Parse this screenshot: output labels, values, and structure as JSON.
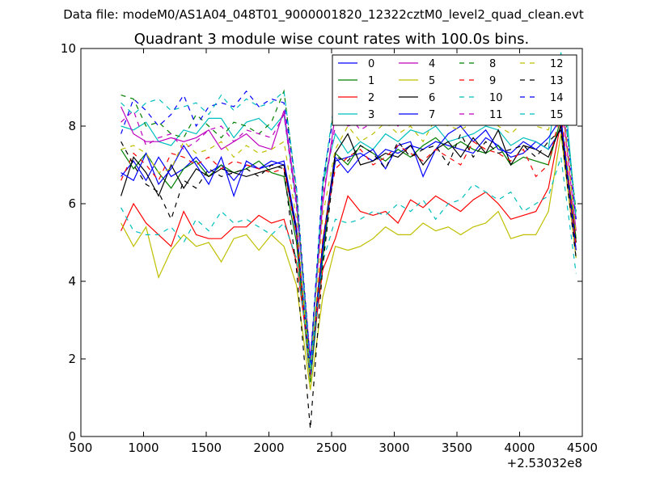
{
  "suptitle": "Data file: modeM0/AS1A04_048T01_9000001820_12322cztM0_level2_quad_clean.evt",
  "chart_data": {
    "type": "line",
    "title": "Quadrant 3 module wise count rates with 100.0s bins.",
    "xlabel": "",
    "ylabel": "",
    "x_offset_label": "+2.53032e8",
    "xlim": [
      500,
      4500
    ],
    "ylim": [
      0,
      10
    ],
    "xticks": [
      "500",
      "1000",
      "1500",
      "2000",
      "2500",
      "3000",
      "3500",
      "4000",
      "4500"
    ],
    "yticks": [
      "0",
      "2",
      "4",
      "6",
      "8",
      "10"
    ],
    "grid": false,
    "legend_position": "top-right",
    "x": [
      820,
      920,
      1020,
      1120,
      1220,
      1320,
      1420,
      1520,
      1620,
      1720,
      1820,
      1920,
      2020,
      2120,
      2220,
      2330,
      2430,
      2530,
      2630,
      2730,
      2830,
      2930,
      3030,
      3130,
      3230,
      3330,
      3430,
      3530,
      3630,
      3730,
      3830,
      3930,
      4030,
      4130,
      4230,
      4330,
      4450
    ],
    "series": [
      {
        "name": "0",
        "color": "#0000ff",
        "dash": "solid",
        "values": [
          6.7,
          7.1,
          6.6,
          7.2,
          6.7,
          6.9,
          7.2,
          6.8,
          7.0,
          6.6,
          7.0,
          6.9,
          7.1,
          7.0,
          5.2,
          1.6,
          4.8,
          7.1,
          7.2,
          7.3,
          7.1,
          7.4,
          7.3,
          7.5,
          7.4,
          7.6,
          7.5,
          7.4,
          7.3,
          7.7,
          7.5,
          7.2,
          7.3,
          7.6,
          7.4,
          7.9,
          5.0
        ]
      },
      {
        "name": "1",
        "color": "#008000",
        "dash": "solid",
        "values": [
          7.4,
          6.9,
          7.3,
          6.8,
          6.4,
          6.9,
          7.1,
          6.7,
          7.0,
          6.8,
          6.9,
          7.1,
          6.8,
          6.7,
          5.0,
          1.4,
          4.6,
          7.3,
          7.0,
          7.5,
          7.3,
          7.1,
          7.4,
          7.2,
          7.5,
          7.7,
          7.4,
          7.6,
          7.4,
          7.3,
          7.5,
          7.0,
          7.2,
          7.1,
          7.0,
          8.2,
          5.1
        ]
      },
      {
        "name": "2",
        "color": "#ff0000",
        "dash": "solid",
        "values": [
          5.3,
          6.0,
          5.5,
          5.2,
          4.9,
          5.8,
          5.2,
          5.1,
          5.1,
          5.4,
          5.4,
          5.7,
          5.5,
          5.6,
          4.5,
          1.8,
          4.3,
          5.1,
          6.2,
          5.8,
          5.7,
          5.8,
          5.5,
          6.1,
          5.9,
          6.2,
          6.0,
          5.8,
          6.1,
          6.3,
          6.0,
          5.6,
          5.7,
          5.8,
          6.4,
          8.1,
          4.8
        ]
      },
      {
        "name": "3",
        "color": "#00bfbf",
        "dash": "solid",
        "values": [
          8.0,
          7.9,
          8.1,
          7.6,
          7.5,
          7.9,
          7.8,
          8.2,
          8.2,
          7.7,
          8.1,
          8.2,
          7.9,
          8.3,
          6.0,
          1.8,
          6.5,
          7.8,
          7.3,
          7.6,
          7.4,
          7.8,
          7.6,
          7.9,
          7.8,
          8.0,
          7.6,
          7.7,
          7.8,
          8.0,
          7.9,
          7.5,
          7.7,
          7.6,
          7.4,
          9.9,
          5.6
        ]
      },
      {
        "name": "4",
        "color": "#bf00bf",
        "dash": "solid",
        "values": [
          8.5,
          7.8,
          7.6,
          7.6,
          7.7,
          7.6,
          7.7,
          7.9,
          7.4,
          7.6,
          7.8,
          7.5,
          7.4,
          8.4,
          6.1,
          2.0,
          6.0,
          8.3,
          8.0,
          8.1,
          8.2,
          8.3,
          8.0,
          8.4,
          8.2,
          8.5,
          8.3,
          8.1,
          8.4,
          8.6,
          8.7,
          8.2,
          8.5,
          8.4,
          8.3,
          8.8,
          5.3
        ]
      },
      {
        "name": "5",
        "color": "#bfbf00",
        "dash": "solid",
        "values": [
          5.5,
          4.9,
          5.4,
          4.1,
          4.8,
          5.2,
          4.9,
          5.0,
          4.5,
          5.1,
          5.2,
          4.8,
          5.2,
          4.9,
          3.9,
          1.2,
          3.6,
          4.9,
          4.8,
          4.9,
          5.1,
          5.4,
          5.2,
          5.2,
          5.5,
          5.3,
          5.4,
          5.2,
          5.4,
          5.5,
          5.8,
          5.1,
          5.2,
          5.2,
          5.8,
          7.8,
          4.6
        ]
      },
      {
        "name": "6",
        "color": "#000000",
        "dash": "solid",
        "values": [
          6.2,
          7.2,
          6.8,
          6.2,
          7.0,
          6.4,
          6.9,
          6.7,
          6.9,
          6.8,
          6.7,
          6.8,
          6.9,
          7.0,
          5.3,
          1.7,
          5.0,
          7.3,
          7.8,
          7.0,
          7.1,
          7.3,
          7.2,
          7.5,
          7.0,
          7.4,
          7.6,
          7.2,
          7.7,
          7.3,
          7.9,
          7.0,
          7.5,
          7.4,
          7.2,
          8.0,
          5.0
        ]
      },
      {
        "name": "7",
        "color": "#0000ff",
        "dash": "solid",
        "values": [
          6.8,
          6.6,
          7.3,
          6.5,
          6.9,
          7.5,
          7.0,
          6.5,
          7.2,
          6.2,
          7.1,
          6.9,
          7.0,
          7.1,
          5.4,
          1.5,
          4.9,
          7.2,
          6.8,
          7.2,
          7.4,
          6.9,
          7.5,
          7.6,
          6.7,
          7.4,
          7.8,
          8.0,
          7.6,
          7.9,
          7.4,
          7.3,
          7.6,
          7.4,
          7.7,
          8.2,
          4.8
        ]
      },
      {
        "name": "8",
        "color": "#008000",
        "dash": "dashed",
        "values": [
          8.8,
          8.7,
          8.0,
          8.1,
          7.8,
          7.7,
          8.3,
          8.0,
          7.7,
          8.1,
          8.0,
          7.8,
          8.1,
          8.9,
          6.3,
          1.8,
          6.4,
          8.7,
          8.1,
          8.4,
          8.6,
          8.3,
          8.8,
          8.5,
          8.9,
          9.0,
          8.6,
          8.8,
          8.9,
          9.1,
          8.8,
          8.2,
          8.7,
          8.6,
          8.4,
          9.2,
          5.8
        ]
      },
      {
        "name": "9",
        "color": "#ff0000",
        "dash": "dashed",
        "values": [
          6.6,
          7.3,
          7.0,
          6.6,
          7.3,
          7.2,
          7.0,
          7.2,
          6.9,
          7.1,
          7.0,
          6.9,
          6.8,
          6.9,
          5.2,
          1.6,
          5.1,
          6.9,
          7.2,
          7.4,
          7.0,
          7.2,
          7.5,
          7.3,
          7.1,
          7.4,
          7.2,
          7.0,
          7.6,
          7.4,
          7.3,
          7.1,
          7.4,
          6.7,
          7.0,
          8.4,
          4.9
        ]
      },
      {
        "name": "10",
        "color": "#00bfbf",
        "dash": "dashed",
        "values": [
          5.9,
          5.3,
          5.2,
          5.2,
          5.4,
          5.0,
          5.6,
          5.3,
          5.8,
          5.5,
          5.6,
          5.4,
          5.2,
          5.5,
          4.6,
          1.8,
          4.5,
          5.6,
          5.5,
          5.6,
          5.8,
          5.7,
          6.0,
          5.8,
          6.1,
          5.6,
          6.0,
          6.1,
          6.5,
          6.3,
          6.1,
          6.3,
          5.8,
          6.0,
          6.2,
          7.2,
          4.2
        ]
      },
      {
        "name": "11",
        "color": "#bf00bf",
        "dash": "dashed",
        "values": [
          8.1,
          8.4,
          7.5,
          7.7,
          7.8,
          7.4,
          7.6,
          7.9,
          8.0,
          7.6,
          7.9,
          7.8,
          7.7,
          8.3,
          5.9,
          2.0,
          6.2,
          8.0,
          8.3,
          7.9,
          8.1,
          8.5,
          8.2,
          8.6,
          8.3,
          8.1,
          8.4,
          8.6,
          8.5,
          8.3,
          8.7,
          8.4,
          8.6,
          8.5,
          8.3,
          9.0,
          5.5
        ]
      },
      {
        "name": "12",
        "color": "#bfbf00",
        "dash": "dashed",
        "values": [
          7.4,
          7.5,
          7.3,
          6.8,
          6.9,
          7.6,
          7.3,
          7.4,
          7.6,
          7.2,
          7.5,
          7.3,
          7.4,
          7.6,
          5.6,
          1.5,
          5.7,
          7.4,
          8.0,
          7.6,
          7.8,
          8.1,
          7.8,
          8.0,
          7.6,
          8.2,
          8.0,
          7.9,
          8.1,
          8.4,
          8.0,
          7.8,
          8.1,
          8.0,
          7.9,
          9.0,
          5.2
        ]
      },
      {
        "name": "13",
        "color": "#000000",
        "dash": "dashed",
        "values": [
          7.6,
          7.0,
          6.5,
          6.3,
          5.6,
          6.6,
          6.4,
          6.9,
          6.7,
          6.8,
          6.9,
          6.7,
          7.0,
          6.9,
          4.3,
          0.2,
          4.4,
          7.2,
          7.1,
          7.5,
          7.3,
          6.9,
          7.6,
          7.2,
          7.4,
          7.5,
          7.0,
          7.8,
          7.2,
          7.6,
          7.3,
          7.4,
          7.5,
          7.2,
          7.6,
          7.9,
          4.6
        ]
      },
      {
        "name": "14",
        "color": "#0000ff",
        "dash": "dashed",
        "values": [
          7.8,
          8.7,
          8.4,
          8.0,
          8.3,
          8.8,
          8.0,
          8.5,
          8.6,
          8.5,
          8.9,
          8.5,
          8.7,
          8.6,
          6.4,
          1.9,
          6.6,
          8.5,
          8.7,
          8.4,
          8.8,
          8.6,
          9.0,
          8.7,
          9.1,
          8.9,
          8.8,
          9.0,
          9.2,
          8.9,
          9.1,
          8.7,
          9.0,
          8.8,
          8.6,
          9.4,
          5.6
        ]
      },
      {
        "name": "15",
        "color": "#00bfbf",
        "dash": "dashed",
        "values": [
          8.6,
          8.3,
          8.6,
          8.7,
          8.4,
          8.5,
          8.6,
          8.3,
          8.8,
          8.4,
          8.7,
          8.5,
          8.6,
          8.9,
          6.4,
          1.7,
          6.5,
          8.8,
          8.5,
          8.7,
          8.9,
          8.6,
          8.8,
          8.9,
          8.7,
          9.0,
          8.8,
          8.9,
          9.1,
          8.8,
          9.0,
          8.7,
          8.9,
          8.8,
          8.7,
          9.4,
          5.7
        ]
      }
    ]
  }
}
